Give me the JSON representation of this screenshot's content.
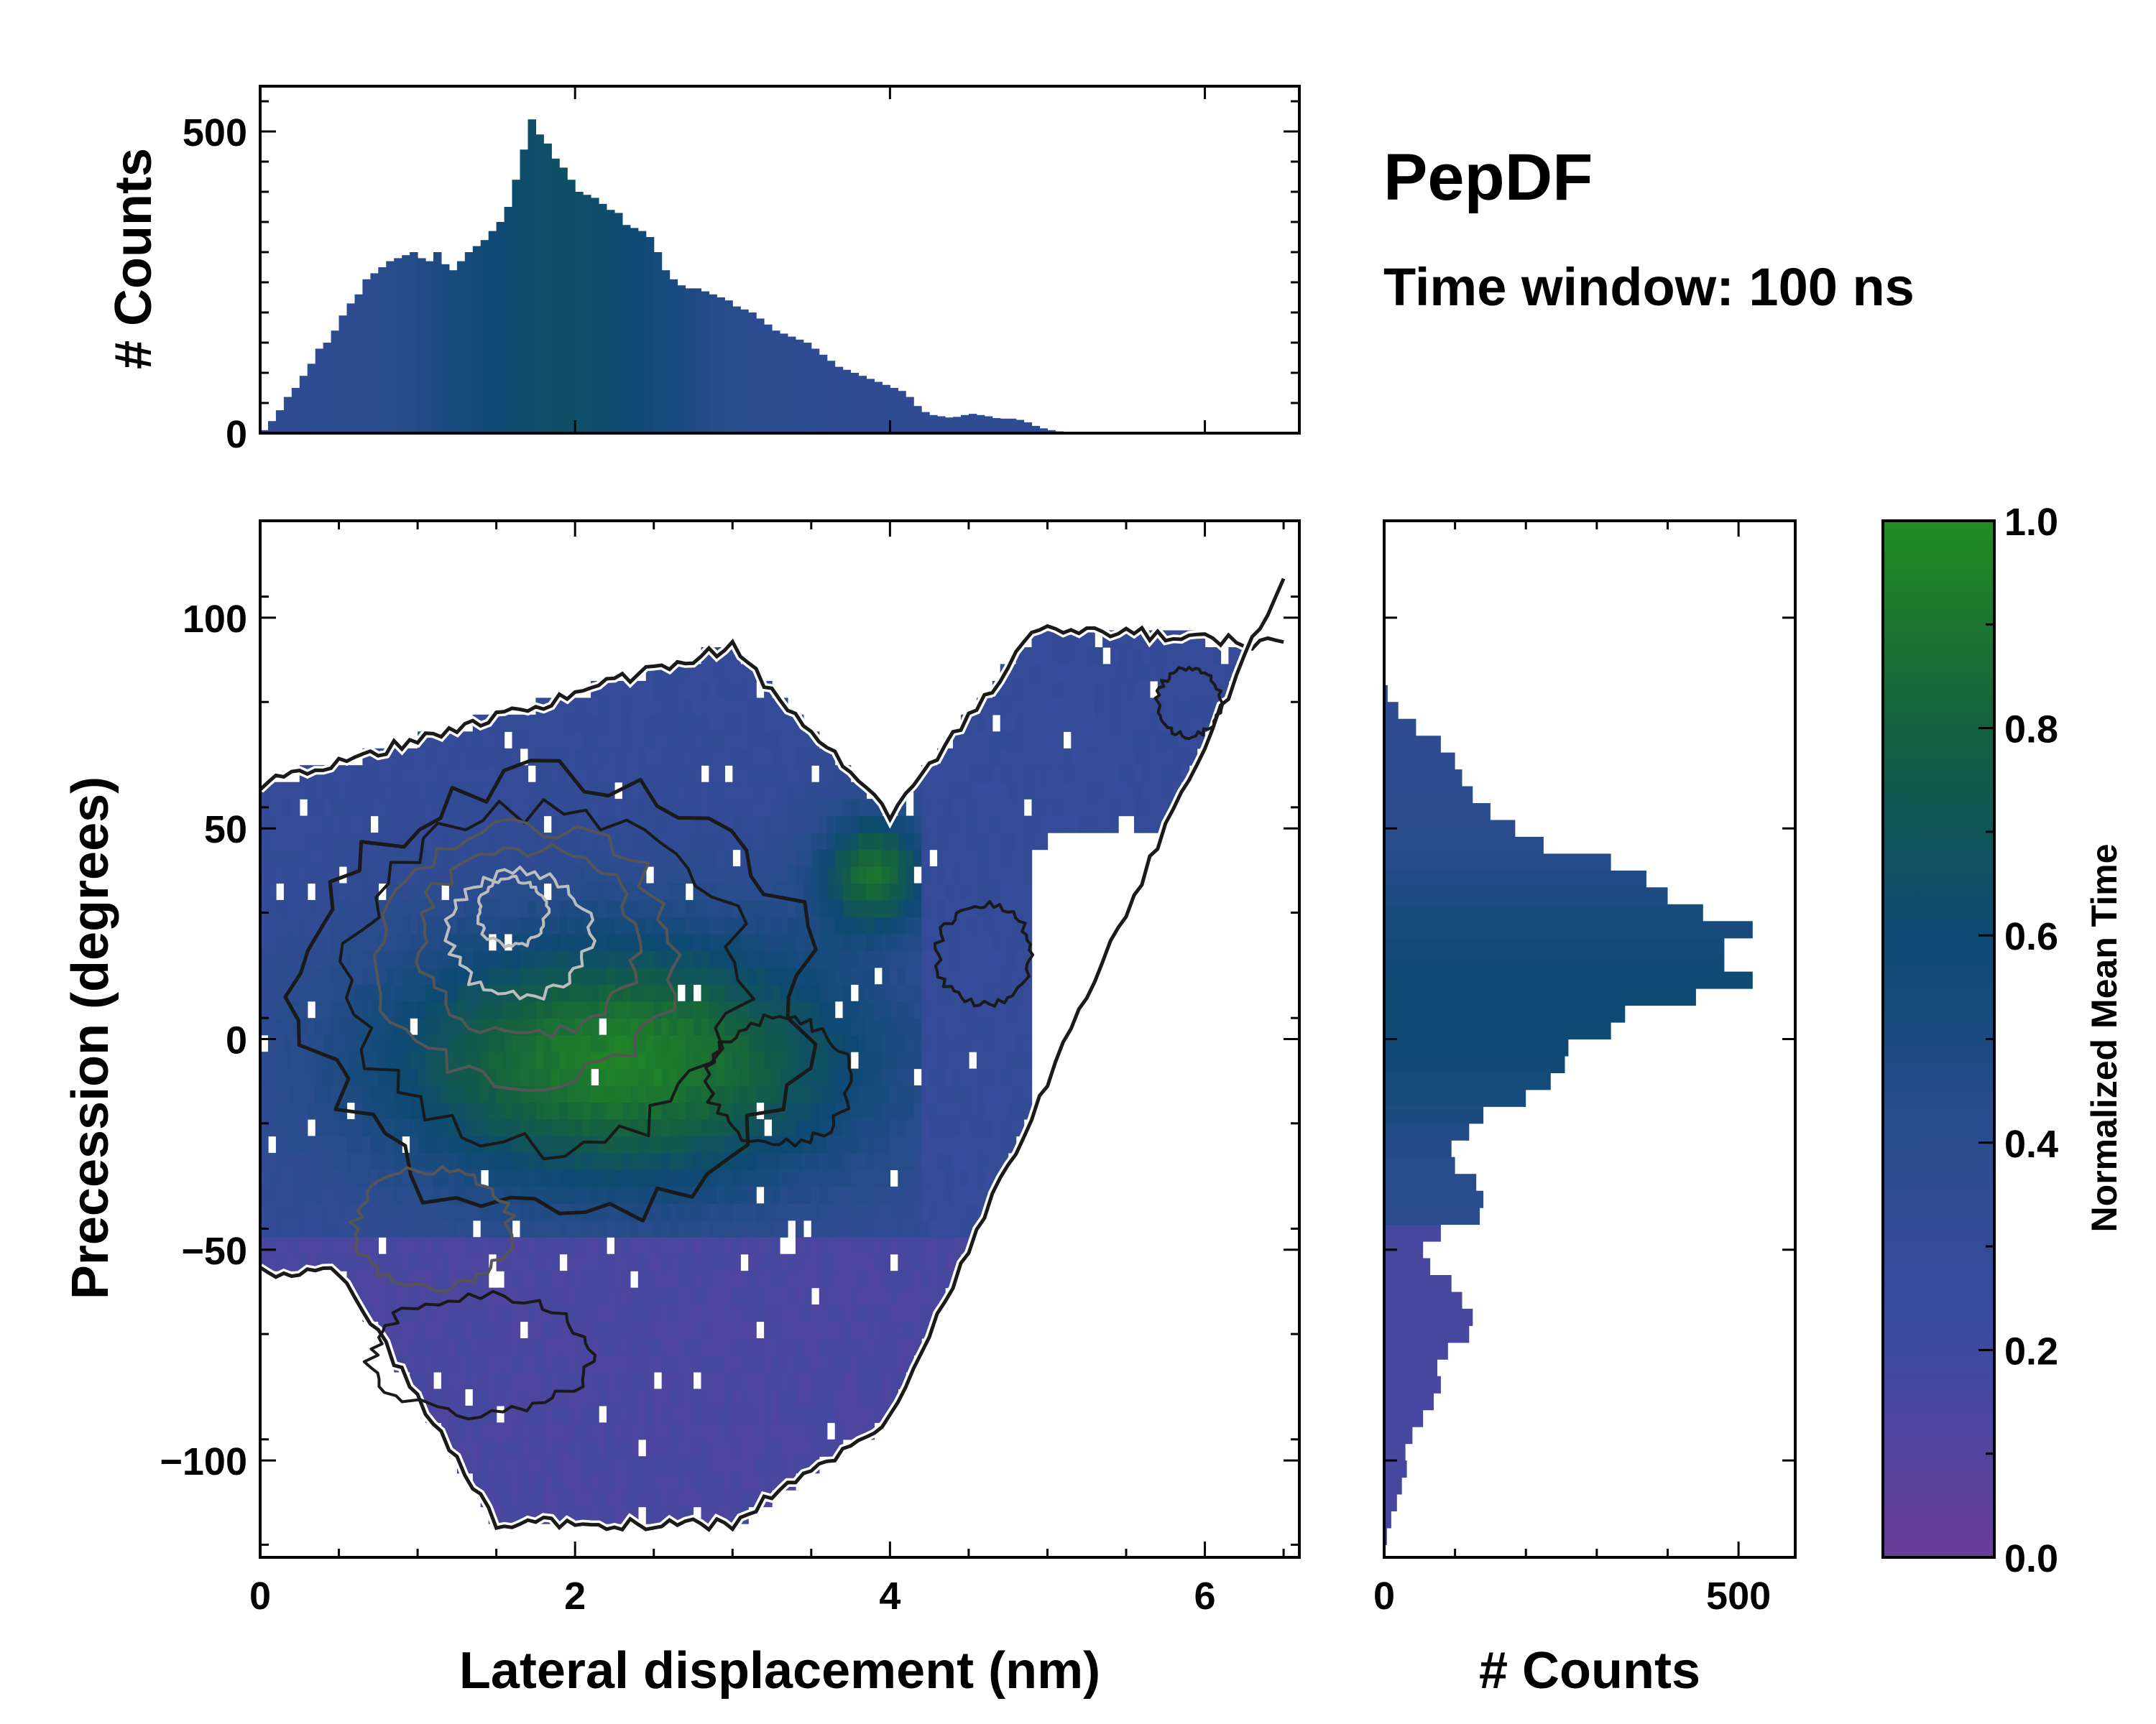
{
  "annotations": {
    "title": "PepDF",
    "subtitle": "Time window: 100 ns"
  },
  "colors": {
    "cmap": [
      "#6a3d9a",
      "#3d4aa0",
      "#2b4c8e",
      "#0d4a73",
      "#15603f",
      "#228b22"
    ],
    "contour_dark": "#1a1a1a",
    "contour_mid": "#555555",
    "contour_light": "#bdbdbd"
  },
  "chart_data": [
    {
      "id": "joint",
      "type": "heatmap",
      "xlabel": "Lateral displacement (nm)",
      "ylabel": "Precession (degrees)",
      "xlim": [
        0,
        6.6
      ],
      "ylim": [
        -123,
        123
      ],
      "xticks": [
        0,
        2,
        4,
        6
      ],
      "xtick_labels": [
        "0",
        "2",
        "4",
        "6"
      ],
      "yticks": [
        -100,
        -50,
        0,
        50,
        100
      ],
      "ytick_labels": [
        "−100",
        "−50",
        "0",
        "50",
        "100"
      ],
      "color_value": "Normalized mean time per bin (0–1)",
      "contour_levels": [
        "outer boundary",
        "low",
        "mid",
        "high",
        "peak"
      ]
    },
    {
      "id": "marginal_x",
      "type": "bar",
      "ylabel": "# Counts",
      "xlim": [
        0,
        6.6
      ],
      "ylim": [
        0,
        575
      ],
      "yticks": [
        0,
        500
      ],
      "ytick_labels": [
        "0",
        "500"
      ],
      "bin_width": 0.05,
      "x_start": 0,
      "values": [
        5,
        20,
        38,
        60,
        75,
        95,
        115,
        140,
        150,
        170,
        195,
        215,
        230,
        255,
        265,
        275,
        285,
        290,
        295,
        300,
        290,
        285,
        300,
        280,
        270,
        285,
        300,
        310,
        320,
        335,
        350,
        375,
        420,
        470,
        520,
        495,
        480,
        455,
        440,
        420,
        400,
        395,
        390,
        380,
        370,
        365,
        345,
        340,
        335,
        325,
        300,
        270,
        255,
        245,
        240,
        240,
        235,
        230,
        225,
        220,
        210,
        205,
        200,
        190,
        180,
        170,
        165,
        160,
        155,
        150,
        140,
        130,
        120,
        110,
        105,
        100,
        95,
        90,
        85,
        80,
        75,
        70,
        60,
        45,
        35,
        30,
        28,
        26,
        27,
        30,
        32,
        30,
        28,
        25,
        24,
        24,
        22,
        18,
        12,
        8,
        5,
        3,
        2,
        1,
        0,
        0,
        0,
        0,
        0,
        0,
        0,
        0
      ]
    },
    {
      "id": "marginal_y",
      "type": "bar",
      "xlabel": "# Counts",
      "xlim": [
        0,
        580
      ],
      "xticks": [
        0,
        500
      ],
      "xtick_labels": [
        "0",
        "500"
      ],
      "ylim": [
        -123,
        123
      ],
      "bin_width": 4,
      "y_start": -120,
      "values": [
        4,
        10,
        18,
        25,
        32,
        30,
        40,
        55,
        70,
        80,
        75,
        90,
        120,
        125,
        110,
        95,
        65,
        55,
        80,
        135,
        140,
        130,
        100,
        95,
        120,
        140,
        200,
        235,
        255,
        260,
        320,
        340,
        440,
        520,
        480,
        480,
        520,
        450,
        400,
        370,
        320,
        225,
        185,
        150,
        125,
        110,
        100,
        80,
        45,
        20,
        5
      ]
    },
    {
      "id": "colorbar",
      "type": "heatmap",
      "label": "Normalized Mean Time",
      "range": [
        0.0,
        1.0
      ],
      "ticks": [
        0.0,
        0.2,
        0.4,
        0.6,
        0.8,
        1.0
      ],
      "tick_labels": [
        "0.0",
        "0.2",
        "0.4",
        "0.6",
        "0.8",
        "1.0"
      ]
    }
  ]
}
